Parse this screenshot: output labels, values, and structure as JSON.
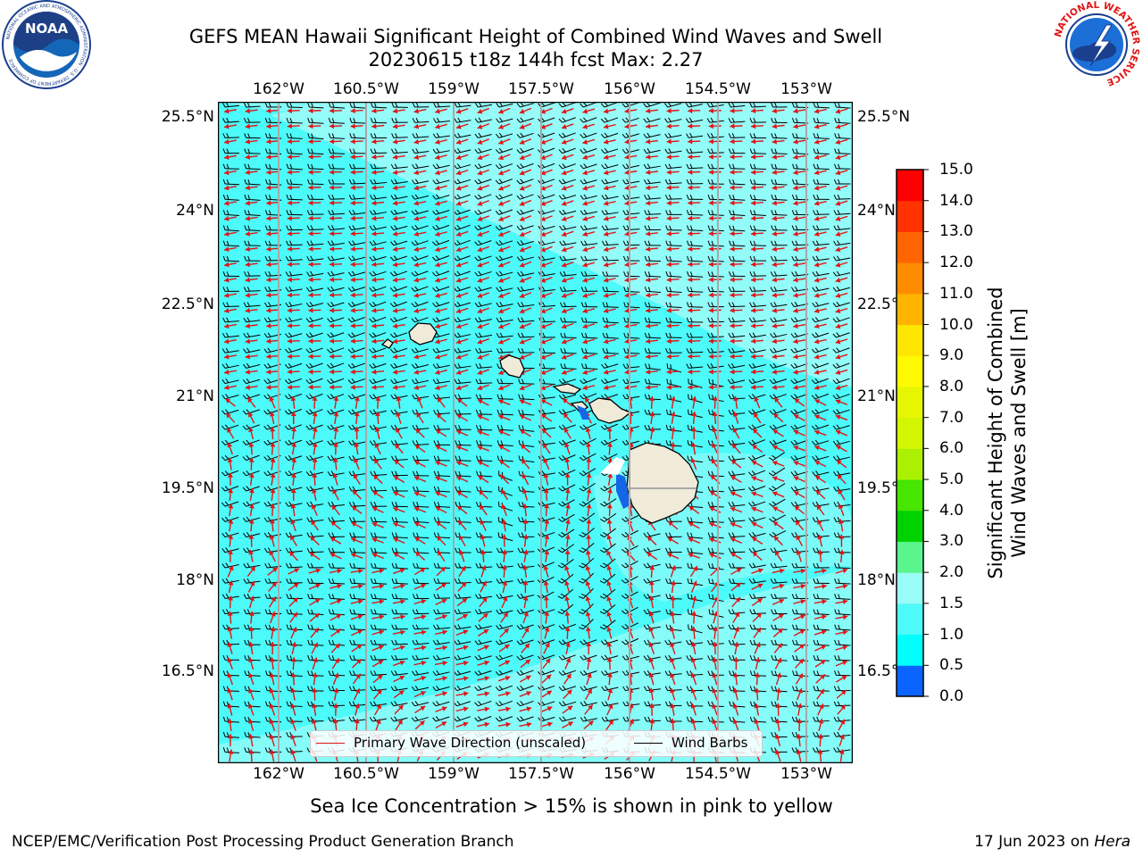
{
  "header": {
    "title_line1": "GEFS MEAN Hawaii Significant Height of Combined Wind Waves and Swell",
    "title_line2": "20230615 t18z 144h fcst   Max: 2.27"
  },
  "map": {
    "lon_labels": [
      "162°W",
      "160.5°W",
      "159°W",
      "157.5°W",
      "156°W",
      "154.5°W",
      "153°W"
    ],
    "lat_labels": [
      "25.5°N",
      "24°N",
      "22.5°N",
      "21°N",
      "19.5°N",
      "18°N",
      "16.5°N"
    ],
    "ocean_color": "#4dfafa",
    "light_band_color": "#9afcf8",
    "land_color": "#efebd8",
    "wave_arrow_color": "#e11515",
    "barb_color": "#000000"
  },
  "legend": {
    "wave_direction_label": "Primary Wave Direction (unscaled)",
    "wind_barbs_label": "Wind Barbs"
  },
  "colorbar": {
    "label_line1": "Significant Height of Combined",
    "label_line2": "Wind Waves and Swell [m]",
    "ticks": [
      "15.0",
      "14.0",
      "13.0",
      "12.0",
      "11.0",
      "10.0",
      "9.0",
      "8.0",
      "7.0",
      "6.0",
      "5.0",
      "4.0",
      "3.0",
      "2.0",
      "1.5",
      "1.0",
      "0.5",
      "0.0"
    ],
    "colors_bottom_to_top": [
      "#0000ff",
      "#0a64ff",
      "#00ffff",
      "#4dfafa",
      "#9afcf8",
      "#5af58c",
      "#00d200",
      "#46e600",
      "#aaf000",
      "#d2f500",
      "#e6f500",
      "#fffa00",
      "#ffe600",
      "#ffb400",
      "#ff8c00",
      "#ff6400",
      "#ff3200",
      "#ff0000"
    ]
  },
  "footer": {
    "note": "Sea Ice Concentration > 15% is shown in pink to yellow",
    "credit": "NCEP/EMC/Verification Post Processing Product Generation Branch",
    "date_prefix": "17 Jun 2023 on ",
    "machine": "Hera"
  },
  "logos": {
    "noaa_text": "NOAA",
    "noaa_ring_text": "NATIONAL OCEANIC AND ATMOSPHERIC ADMINISTRATION · U.S. DEPARTMENT OF COMMERCE",
    "nws_ring_text": "NATIONAL WEATHER SERVICE"
  }
}
